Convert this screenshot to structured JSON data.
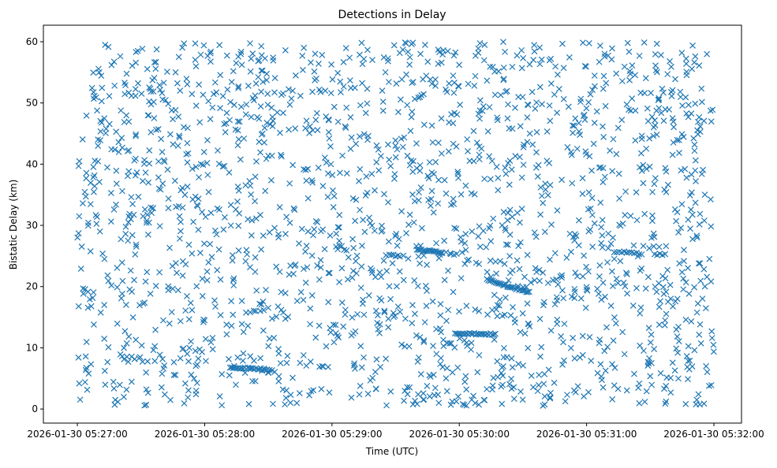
{
  "chart_data": {
    "type": "scatter",
    "title": "Detections in Delay",
    "xlabel": "Time (UTC)",
    "ylabel": "Bistatic Delay (km)",
    "x_units": "seconds after 2026-01-30 05:27:00",
    "xlim": [
      -16,
      313
    ],
    "ylim": [
      -2.3,
      62.7
    ],
    "xticks": [
      0,
      60,
      120,
      180,
      240,
      300
    ],
    "xtick_labels": [
      "2026-01-30 05:27:00",
      "2026-01-30 05:28:00",
      "2026-01-30 05:29:00",
      "2026-01-30 05:30:00",
      "2026-01-30 05:31:00",
      "2026-01-30 05:32:00"
    ],
    "yticks": [
      0,
      10,
      20,
      30,
      40,
      50,
      60
    ],
    "ytick_labels": [
      "0",
      "10",
      "20",
      "30",
      "40",
      "50",
      "60"
    ],
    "grid": false,
    "marker": "x",
    "color": "#1f77b4",
    "background_detections": {
      "count": 1900,
      "x_range": [
        0,
        300
      ],
      "y_range": [
        0.5,
        60
      ]
    },
    "streaks": [
      {
        "x_start": 72,
        "x_end": 88,
        "y_start": 6.8,
        "y_end": 6.5,
        "n": 22
      },
      {
        "x_start": 178,
        "x_end": 197,
        "y_start": 12.4,
        "y_end": 12.2,
        "n": 26
      },
      {
        "x_start": 160,
        "x_end": 172,
        "y_start": 26.0,
        "y_end": 25.6,
        "n": 18
      },
      {
        "x_start": 193,
        "x_end": 213,
        "y_start": 21.2,
        "y_end": 19.0,
        "n": 30
      },
      {
        "x_start": 147,
        "x_end": 152,
        "y_start": 25.1,
        "y_end": 25.0,
        "n": 6
      },
      {
        "x_start": 253,
        "x_end": 266,
        "y_start": 25.7,
        "y_end": 25.4,
        "n": 12
      },
      {
        "x_start": 272,
        "x_end": 277,
        "y_start": 25.3,
        "y_end": 25.2,
        "n": 5
      },
      {
        "x_start": 87,
        "x_end": 93,
        "y_start": 6.4,
        "y_end": 6.2,
        "n": 6
      }
    ]
  }
}
